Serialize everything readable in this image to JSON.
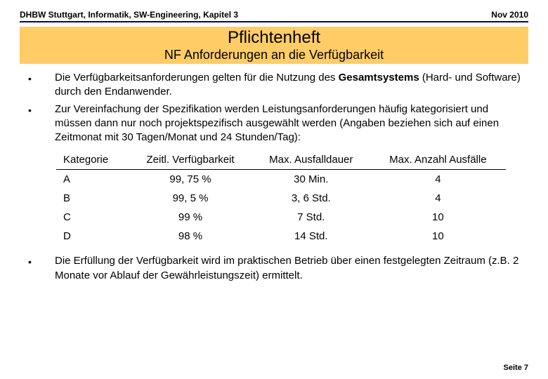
{
  "header": {
    "left": "DHBW Stuttgart, Informatik, SW-Engineering, Kapitel 3",
    "right": "Nov 2010",
    "divider_color": "#000080"
  },
  "title_block": {
    "background": "#ffcc66",
    "main": "Pflichtenheft",
    "sub": "NF Anforderungen an die Verfügbarkeit"
  },
  "bullets_top": [
    "Die Verfügbarkeitsanforderungen gelten für die Nutzung des Gesamtsystems (Hard- und Software) durch den Endanwender.",
    "Zur Vereinfachung der Spezifikation werden Leistungsanforderungen häufig kategorisiert und müssen dann nur noch projektspezifisch ausgewählt werden (Angaben beziehen sich auf einen Zeitmonat mit 30 Tagen/Monat und 24 Stunden/Tag):"
  ],
  "bold_word": "Gesamtsystems",
  "table": {
    "columns": [
      "Kategorie",
      "Zeitl. Verfügbarkeit",
      "Max. Ausfalldauer",
      "Max. Anzahl Ausfälle"
    ],
    "rows": [
      [
        "A",
        "99, 75 %",
        "30 Min.",
        "4"
      ],
      [
        "B",
        "99, 5 %",
        "3, 6 Std.",
        "4"
      ],
      [
        "C",
        "99 %",
        "7 Std.",
        "10"
      ],
      [
        "D",
        "98 %",
        "14 Std.",
        "10"
      ]
    ]
  },
  "bullets_bottom": [
    "Die Erfüllung der Verfügbarkeit wird im praktischen Betrieb über einen festgelegten Zeitraum (z.B. 2 Monate vor Ablauf der Gewährleistungszeit) ermittelt."
  ],
  "footer": {
    "page_label": "Seite 7"
  }
}
